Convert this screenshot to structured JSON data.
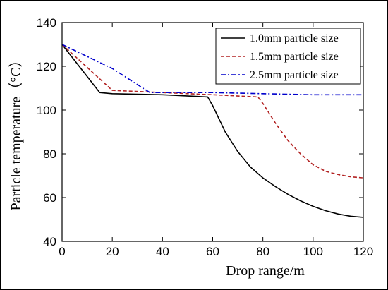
{
  "chart_data": {
    "type": "line",
    "xlabel": "Drop range/m",
    "ylabel": "Particle temperature（°C）",
    "xlim": [
      0,
      120
    ],
    "ylim": [
      40,
      140
    ],
    "xticks": [
      0,
      20,
      40,
      60,
      80,
      100,
      120
    ],
    "yticks": [
      40,
      60,
      80,
      100,
      120,
      140
    ],
    "xtick_labels": [
      "0",
      "20",
      "40",
      "60",
      "80",
      "100",
      "120"
    ],
    "ytick_labels": [
      "40",
      "60",
      "80",
      "100",
      "120",
      "140"
    ],
    "grid": false,
    "legend_position": "top-right",
    "series": [
      {
        "name": "1.0mm particle size",
        "color": "#000000",
        "dash": "solid",
        "x": [
          0,
          15,
          20,
          40,
          58,
          60,
          65,
          70,
          75,
          80,
          85,
          90,
          95,
          100,
          105,
          110,
          115,
          120
        ],
        "y": [
          130,
          108,
          107.5,
          107,
          106,
          102,
          90,
          81,
          74,
          69,
          65,
          61.5,
          58.5,
          56,
          54,
          52.5,
          51.5,
          51
        ]
      },
      {
        "name": "1.5mm particle size",
        "color": "#b22222",
        "dash": "dashed",
        "x": [
          0,
          20,
          40,
          60,
          78,
          80,
          85,
          90,
          95,
          100,
          105,
          110,
          115,
          120
        ],
        "y": [
          130,
          109,
          108,
          107,
          106,
          103,
          94,
          86,
          80,
          75,
          72,
          70.5,
          69.5,
          69
        ]
      },
      {
        "name": "2.5mm particle size",
        "color": "#0000cc",
        "dash": "dash-dot",
        "x": [
          0,
          20,
          35,
          40,
          60,
          80,
          100,
          120
        ],
        "y": [
          130,
          119,
          108,
          108,
          108,
          107.5,
          107,
          107
        ]
      }
    ]
  }
}
